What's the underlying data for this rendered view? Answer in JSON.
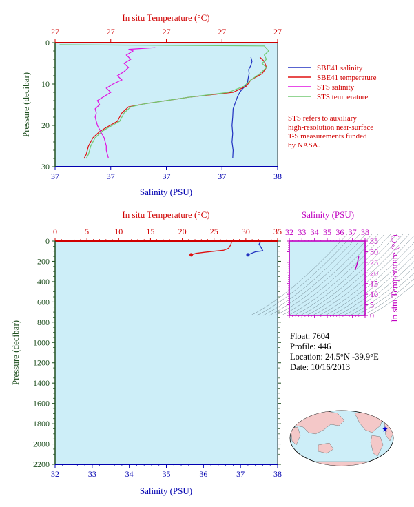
{
  "colors": {
    "plot_bg": "#cdeef8",
    "sbe_salinity": "#2030c0",
    "sbe_temperature": "#e01010",
    "sts_salinity": "#e010e0",
    "sts_temperature": "#70c870",
    "temp_axis": "#d00000",
    "sal_axis": "#0000b0",
    "pressure_axis": "#1f4f1f",
    "ts_axis": "#c000c0",
    "note": "#d00000"
  },
  "top_panel": {
    "top_axis_title": "In situ Temperature (°C)",
    "top_tick_labels": [
      "27",
      "27",
      "27",
      "27",
      "27"
    ],
    "left_axis_title": "Pressure (decibar)",
    "left_ticks": [
      0,
      10,
      20,
      30
    ],
    "bottom_axis_title": "Salinity (PSU)",
    "bottom_tick_labels": [
      "37",
      "37",
      "37",
      "37",
      "38"
    ]
  },
  "legend": [
    {
      "label": "SBE41 salinity",
      "color": "#2030c0"
    },
    {
      "label": "SBE41 temperature",
      "color": "#e01010"
    },
    {
      "label": "STS salinity",
      "color": "#e010e0"
    },
    {
      "label": "STS temperature",
      "color": "#70c870"
    }
  ],
  "note_lines": [
    "STS refers to auxiliary",
    "high-resolution near-surface",
    "T-S measurements funded",
    "by NASA."
  ],
  "bottom_panel": {
    "top_axis_title": "In situ Temperature (°C)",
    "top_ticks": [
      0,
      5,
      10,
      15,
      20,
      25,
      30,
      35
    ],
    "left_axis_title": "Pressure (decibar)",
    "left_ticks": [
      0,
      200,
      400,
      600,
      800,
      1000,
      1200,
      1400,
      1600,
      1800,
      2000,
      2200
    ],
    "bottom_axis_title": "Salinity (PSU)",
    "bottom_ticks": [
      32,
      33,
      34,
      35,
      36,
      37,
      38
    ]
  },
  "ts_panel": {
    "top_axis_title": "Salinity (PSU)",
    "top_ticks": [
      32,
      33,
      34,
      35,
      36,
      37,
      38
    ],
    "right_axis_title": "In situ Temperature (°C)",
    "right_ticks": [
      0,
      5,
      10,
      15,
      20,
      25,
      30,
      35
    ]
  },
  "info": {
    "float": "Float:  7604",
    "profile": "Profile:  446",
    "location": "Location:  24.5°N  -39.9°E",
    "date": "Date:  10/16/2013"
  },
  "map": {
    "float_lat": 24.5,
    "float_lon": -39.9
  },
  "chart_data": [
    {
      "type": "line",
      "title": "",
      "xlabel": "Salinity (PSU)",
      "x2label": "In situ Temperature (°C)",
      "ylabel": "Pressure (decibar)",
      "ylim": [
        30,
        0
      ],
      "series": [
        {
          "name": "SBE41 salinity",
          "axis_frac": [
            [
              0.88,
              3.5
            ],
            [
              0.885,
              4.5
            ],
            [
              0.88,
              5.5
            ],
            [
              0.87,
              6.5
            ],
            [
              0.872,
              7.5
            ],
            [
              0.868,
              8.5
            ],
            [
              0.865,
              9.5
            ],
            [
              0.855,
              10.5
            ],
            [
              0.84,
              11.3
            ],
            [
              0.83,
              12
            ],
            [
              0.82,
              13
            ],
            [
              0.81,
              14.5
            ],
            [
              0.8,
              16
            ],
            [
              0.798,
              18
            ],
            [
              0.795,
              20
            ],
            [
              0.798,
              22
            ],
            [
              0.795,
              24
            ],
            [
              0.8,
              26
            ],
            [
              0.798,
              28
            ]
          ]
        },
        {
          "name": "SBE41 temperature",
          "axis_frac": [
            [
              0.92,
              3.5
            ],
            [
              0.94,
              4.5
            ],
            [
              0.95,
              6
            ],
            [
              0.93,
              7.5
            ],
            [
              0.88,
              9
            ],
            [
              0.86,
              10.5
            ],
            [
              0.8,
              12
            ],
            [
              0.6,
              13.2
            ],
            [
              0.5,
              14
            ],
            [
              0.4,
              14.8
            ],
            [
              0.33,
              15.5
            ],
            [
              0.3,
              17
            ],
            [
              0.28,
              19
            ],
            [
              0.23,
              20.5
            ],
            [
              0.2,
              21.5
            ],
            [
              0.17,
              23
            ],
            [
              0.15,
              25
            ],
            [
              0.14,
              27
            ],
            [
              0.13,
              28
            ]
          ]
        },
        {
          "name": "STS salinity",
          "axis_frac": [
            [
              0.45,
              1.2
            ],
            [
              0.33,
              1.6
            ],
            [
              0.35,
              2
            ],
            [
              0.32,
              3
            ],
            [
              0.34,
              4
            ],
            [
              0.31,
              5
            ],
            [
              0.33,
              6
            ],
            [
              0.31,
              7
            ],
            [
              0.28,
              8
            ],
            [
              0.3,
              9
            ],
            [
              0.26,
              10
            ],
            [
              0.23,
              11
            ],
            [
              0.25,
              12
            ],
            [
              0.22,
              13
            ],
            [
              0.19,
              14
            ],
            [
              0.2,
              15
            ],
            [
              0.18,
              16
            ],
            [
              0.185,
              17
            ],
            [
              0.18,
              18
            ],
            [
              0.185,
              19
            ],
            [
              0.19,
              20
            ],
            [
              0.2,
              21
            ],
            [
              0.21,
              22
            ],
            [
              0.22,
              23
            ],
            [
              0.225,
              24
            ],
            [
              0.23,
              25
            ],
            [
              0.23,
              26
            ],
            [
              0.235,
              27
            ],
            [
              0.24,
              28
            ]
          ]
        },
        {
          "name": "STS temperature",
          "axis_frac": [
            [
              0.02,
              0.5
            ],
            [
              0.94,
              0.8
            ],
            [
              0.96,
              2
            ],
            [
              0.94,
              3
            ],
            [
              0.95,
              4
            ],
            [
              0.93,
              5
            ],
            [
              0.95,
              6
            ],
            [
              0.92,
              7.5
            ],
            [
              0.88,
              9
            ],
            [
              0.85,
              10.5
            ],
            [
              0.78,
              12
            ],
            [
              0.6,
              13.2
            ],
            [
              0.5,
              14
            ],
            [
              0.4,
              14.8
            ],
            [
              0.34,
              15.5
            ],
            [
              0.31,
              17
            ],
            [
              0.29,
              19
            ],
            [
              0.24,
              20.5
            ],
            [
              0.21,
              21.5
            ],
            [
              0.18,
              23
            ],
            [
              0.16,
              25
            ],
            [
              0.15,
              27
            ],
            [
              0.14,
              28
            ]
          ]
        }
      ]
    },
    {
      "type": "line",
      "title": "",
      "xlabel": "Salinity (PSU)",
      "x2label": "In situ Temperature (°C)",
      "ylabel": "Pressure (decibar)",
      "xlim": [
        32,
        38
      ],
      "x2lim": [
        0,
        35
      ],
      "ylim": [
        2200,
        0
      ],
      "series": [
        {
          "name": "SBE41 salinity",
          "x": [
            37.55,
            37.5,
            37.55,
            37.6,
            37.4,
            37.3,
            37.2
          ],
          "y": [
            3,
            30,
            60,
            95,
            105,
            120,
            135
          ]
        },
        {
          "name": "SBE41 temperature",
          "x": [
            27.8,
            27.6,
            27.3,
            26.5,
            25.0,
            23.5,
            22.2,
            21.4
          ],
          "y": [
            3,
            40,
            70,
            90,
            100,
            110,
            120,
            135
          ]
        }
      ]
    },
    {
      "type": "line",
      "title": "",
      "xlabel": "Salinity (PSU)",
      "ylabel": "In situ Temperature (°C)",
      "xlim": [
        32,
        38
      ],
      "ylim": [
        0,
        35
      ],
      "series": [
        {
          "name": "",
          "x": [
            37.2,
            37.3,
            37.4,
            37.45,
            37.5
          ],
          "y": [
            21.4,
            23.0,
            25.0,
            26.5,
            27.8
          ]
        }
      ]
    }
  ]
}
